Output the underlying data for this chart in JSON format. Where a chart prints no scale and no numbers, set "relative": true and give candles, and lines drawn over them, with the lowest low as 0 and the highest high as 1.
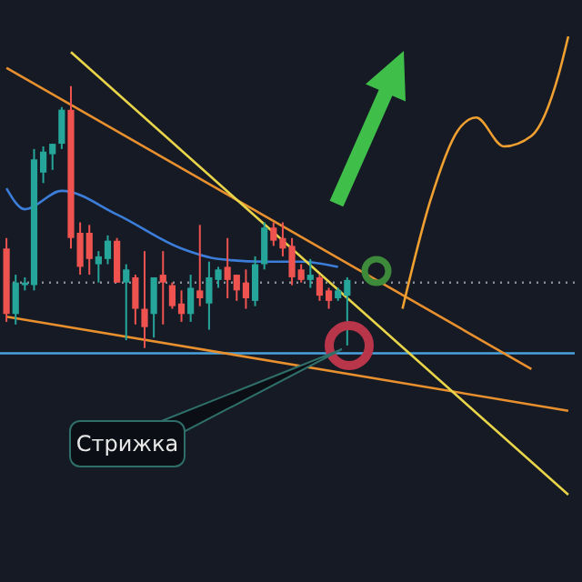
{
  "chart_data": {
    "type": "candlestick",
    "relative": true,
    "categories": [
      null,
      null,
      null,
      null,
      null,
      null,
      null,
      null,
      null,
      null,
      null,
      null,
      null,
      null,
      null,
      null,
      null,
      null,
      null,
      null,
      null,
      null,
      null,
      null,
      null,
      null,
      null,
      null,
      null,
      null,
      null,
      null,
      null,
      null,
      null,
      null,
      null,
      null,
      null,
      null,
      null,
      null,
      null,
      null,
      null,
      null,
      null,
      null,
      null,
      null,
      null,
      null,
      null,
      null,
      null,
      null,
      null,
      null,
      null,
      null,
      null,
      null
    ],
    "ohlc": [
      [
        0.38,
        0.42,
        0.1,
        0.13
      ],
      [
        0.13,
        0.28,
        0.09,
        0.25
      ],
      [
        0.24,
        0.27,
        0.22,
        0.25
      ],
      [
        0.24,
        0.76,
        0.22,
        0.72
      ],
      [
        0.67,
        0.77,
        0.63,
        0.75
      ],
      [
        0.74,
        0.78,
        0.68,
        0.78
      ],
      [
        0.78,
        0.92,
        0.76,
        0.91
      ],
      [
        0.91,
        1,
        0.38,
        0.42
      ],
      [
        0.44,
        0.48,
        0.28,
        0.31
      ],
      [
        0.44,
        0.47,
        0.28,
        0.34
      ],
      [
        0.32,
        0.37,
        0.25,
        0.35
      ],
      [
        0.34,
        0.43,
        0.32,
        0.41
      ],
      [
        0.41,
        0.42,
        0.25,
        0.25
      ],
      [
        0.25,
        0.32,
        0.03,
        0.3
      ],
      [
        0.27,
        0.28,
        0.09,
        0.15
      ],
      [
        0.15,
        0.37,
        0,
        0.08
      ],
      [
        0.13,
        0.27,
        0.04,
        0.27
      ],
      [
        0.28,
        0.37,
        0.09,
        0.25
      ],
      [
        0.24,
        0.25,
        0.15,
        0.16
      ],
      [
        0.17,
        0.22,
        0.1,
        0.13
      ],
      [
        0.13,
        0.28,
        0.1,
        0.23
      ],
      [
        0.22,
        0.47,
        0.16,
        0.19
      ],
      [
        0.17,
        0.33,
        0.07,
        0.27
      ],
      [
        0.26,
        0.31,
        0.23,
        0.3
      ],
      [
        0.31,
        0.42,
        0.19,
        0.26
      ],
      [
        0.28,
        0.28,
        0.18,
        0.22
      ],
      [
        0.25,
        0.3,
        0.15,
        0.19
      ],
      [
        0.18,
        0.35,
        0.16,
        0.32
      ],
      [
        0.32,
        0.48,
        0.3,
        0.46
      ],
      [
        0.46,
        0.48,
        0.39,
        0.41
      ],
      [
        0.42,
        0.48,
        0.35,
        0.38
      ],
      [
        0.39,
        0.42,
        0.24,
        0.27
      ],
      [
        0.3,
        0.32,
        0.25,
        0.26
      ],
      [
        0.26,
        0.34,
        0.23,
        0.28
      ],
      [
        0.27,
        0.28,
        0.18,
        0.2
      ],
      [
        0.22,
        0.23,
        0.15,
        0.18
      ],
      [
        0.19,
        0.23,
        0.18,
        0.22
      ],
      [
        0.2,
        0.27,
        0.01,
        0.26
      ],
      null,
      null,
      null,
      null,
      null,
      null,
      null,
      null,
      null,
      null,
      null,
      null,
      null,
      null,
      null,
      null,
      null,
      null,
      null,
      null,
      null,
      null,
      null,
      null
    ],
    "series": [
      {
        "type": "line",
        "color": "#3b7dd8",
        "values": [
          0.61,
          null,
          0.53,
          null,
          null,
          null,
          0.6,
          null,
          null,
          null,
          null,
          null,
          0.51,
          null,
          null,
          null,
          null,
          null,
          null,
          0.38,
          null,
          null,
          null,
          0.34,
          null,
          null,
          null,
          null,
          0.33,
          null,
          null,
          null,
          0.33,
          null,
          null,
          null,
          0.31,
          null,
          null,
          null,
          null,
          null,
          null,
          null,
          null,
          null,
          null,
          null,
          null,
          null,
          null,
          null,
          null,
          null,
          null,
          null,
          null,
          null,
          null,
          null,
          null,
          null
        ]
      },
      {
        "type": "line",
        "color": "#e8902e",
        "values": [
          1.07,
          null,
          null,
          null,
          null,
          null,
          null,
          null,
          null,
          null,
          null,
          null,
          null,
          null,
          null,
          null,
          null,
          null,
          null,
          null,
          null,
          null,
          null,
          null,
          null,
          null,
          null,
          null,
          null,
          null,
          null,
          null,
          null,
          null,
          null,
          null,
          null,
          null,
          null,
          null,
          null,
          null,
          null,
          null,
          null,
          null,
          null,
          null,
          null,
          null,
          null,
          null,
          null,
          null,
          null,
          null,
          null,
          -0.08,
          null,
          null,
          null,
          null
        ]
      },
      {
        "type": "line",
        "color": "#e8902e",
        "values": [
          0.12,
          null,
          null,
          null,
          null,
          null,
          null,
          null,
          null,
          null,
          null,
          null,
          null,
          null,
          null,
          null,
          null,
          null,
          null,
          null,
          null,
          null,
          null,
          null,
          null,
          null,
          null,
          null,
          null,
          null,
          null,
          null,
          null,
          null,
          null,
          null,
          null,
          null,
          null,
          null,
          null,
          null,
          null,
          null,
          null,
          null,
          null,
          null,
          null,
          null,
          null,
          null,
          null,
          null,
          null,
          null,
          null,
          null,
          null,
          null,
          null,
          -0.24
        ]
      },
      {
        "type": "line",
        "color": "#e9d54a",
        "values": [
          null,
          null,
          null,
          null,
          null,
          null,
          null,
          1.13,
          null,
          null,
          null,
          null,
          null,
          null,
          null,
          null,
          null,
          null,
          null,
          null,
          null,
          null,
          null,
          null,
          null,
          null,
          null,
          null,
          null,
          null,
          null,
          null,
          null,
          null,
          null,
          null,
          null,
          null,
          null,
          null,
          null,
          null,
          null,
          null,
          null,
          null,
          null,
          null,
          null,
          null,
          null,
          null,
          null,
          null,
          null,
          null,
          null,
          null,
          null,
          null,
          null,
          -0.56
        ]
      },
      {
        "type": "line",
        "color": "#f0a030",
        "values": [
          null,
          null,
          null,
          null,
          null,
          null,
          null,
          null,
          null,
          null,
          null,
          null,
          null,
          null,
          null,
          null,
          null,
          null,
          null,
          null,
          null,
          null,
          null,
          null,
          null,
          null,
          null,
          null,
          null,
          null,
          null,
          null,
          null,
          null,
          null,
          null,
          null,
          null,
          null,
          null,
          null,
          null,
          null,
          0.15,
          null,
          null,
          0.56,
          null,
          null,
          0.83,
          null,
          0.88,
          null,
          null,
          0.77,
          null,
          null,
          0.81,
          null,
          null,
          1.05,
          1.19
        ]
      }
    ],
    "ref_lines": [
      {
        "axis": "y",
        "value": 0.25,
        "color": "#8a9099",
        "line_style": "dotted"
      },
      {
        "axis": "y",
        "value": -0.02,
        "color": "#4aa3df",
        "line_style": "solid"
      }
    ],
    "annotations": [
      "Стрижка"
    ]
  }
}
